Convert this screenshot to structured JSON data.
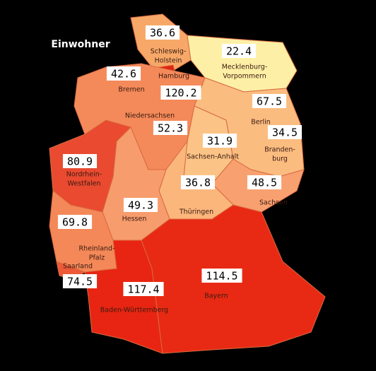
{
  "title": "Einwohner",
  "regions": [
    {
      "label": [
        "Schleswig-",
        "Holstein"
      ],
      "value": 36.6,
      "color": "#f7a868"
    },
    {
      "label": [
        "Mecklenburg-",
        "Vorpommern"
      ],
      "value": 22.4,
      "color": "#fdf0a6"
    },
    {
      "label": [
        "Hamburg"
      ],
      "value": 120.2,
      "color": "#e02512"
    },
    {
      "label": [
        "Bremen"
      ],
      "value": 42.6,
      "color": "#f47a50"
    },
    {
      "label": [
        "Niedersachsen"
      ],
      "value": 52.3,
      "color": "#f48a5a"
    },
    {
      "label": [
        "Berlin"
      ],
      "value": 67.5,
      "color": "#e23a20"
    },
    {
      "label": [
        "Branden-",
        "burg"
      ],
      "value": 34.5,
      "color": "#fbbc80"
    },
    {
      "label": [
        "Sachsen-Anhalt"
      ],
      "value": 31.9,
      "color": "#fbc486"
    },
    {
      "label": [
        "Sachsen"
      ],
      "value": 48.5,
      "color": "#f8a070"
    },
    {
      "label": [
        "Thüringen"
      ],
      "value": 36.8,
      "color": "#fbb67c"
    },
    {
      "label": [
        "Hessen"
      ],
      "value": 49.3,
      "color": "#f79c6c"
    },
    {
      "label": [
        "Nordrhein-",
        "Westfalen"
      ],
      "value": 80.9,
      "color": "#e94a30"
    },
    {
      "label": [
        "Rheinland-",
        "Pfalz"
      ],
      "value": 69.8,
      "color": "#f48858"
    },
    {
      "label": [
        "Saarland"
      ],
      "value": 74.5,
      "color": "#ec5a38"
    },
    {
      "label": [
        "Baden-Württemberg"
      ],
      "value": 117.4,
      "color": "#e82512"
    },
    {
      "label": [
        "Bayern"
      ],
      "value": 114.5,
      "color": "#e82a14"
    }
  ]
}
